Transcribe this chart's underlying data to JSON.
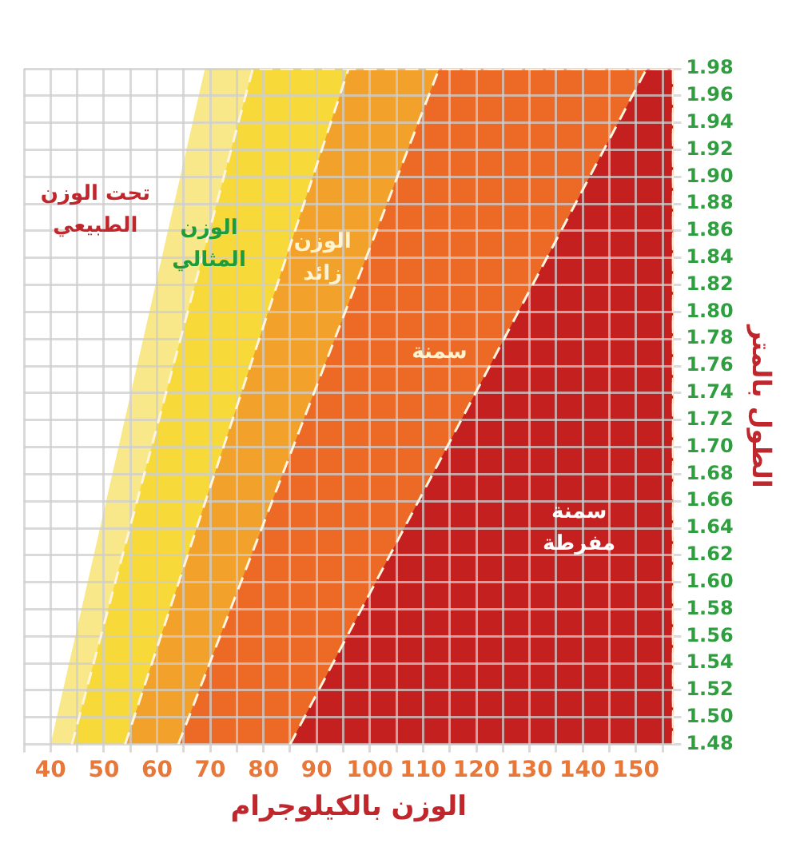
{
  "chart_data": {
    "type": "area",
    "xlabel": "الوزن بالكيلوجرام",
    "ylabel": "الطول بالمتر",
    "series": [
      {
        "color": "#f8e88a",
        "x": [
          40,
          69,
          157,
          157
        ],
        "values": [
          1.48,
          1.98,
          1.98,
          1.48
        ],
        "line_style": "none"
      },
      {
        "color": "#f7d93a",
        "x": [
          44,
          78,
          157,
          157
        ],
        "values": [
          1.48,
          1.98,
          1.98,
          1.48
        ],
        "line_style": "dashed"
      },
      {
        "color": "#f2a12a",
        "x": [
          54,
          96,
          157,
          157
        ],
        "values": [
          1.48,
          1.98,
          1.98,
          1.48
        ],
        "line_style": "dashed"
      },
      {
        "color": "#ec6a25",
        "x": [
          64,
          113,
          157,
          157
        ],
        "values": [
          1.48,
          1.98,
          1.98,
          1.48
        ],
        "line_style": "dashed"
      },
      {
        "color": "#c4201f",
        "x": [
          85,
          152,
          157,
          157
        ],
        "values": [
          1.48,
          1.98,
          1.98,
          1.48
        ],
        "line_style": "dashed"
      }
    ],
    "xlim": [
      35,
      157
    ],
    "xticks": [
      {
        "value": 35,
        "label": null
      },
      40,
      {
        "value": 45,
        "label": null
      },
      50,
      {
        "value": 55,
        "label": null
      },
      60,
      {
        "value": 65,
        "label": null
      },
      70,
      {
        "value": 75,
        "label": null
      },
      80,
      {
        "value": 85,
        "label": null
      },
      90,
      {
        "value": 95,
        "label": null
      },
      100,
      {
        "value": 105,
        "label": null
      },
      110,
      {
        "value": 115,
        "label": null
      },
      120,
      {
        "value": 125,
        "label": null
      },
      130,
      {
        "value": 135,
        "label": null
      },
      140,
      {
        "value": 145,
        "label": null
      },
      150,
      {
        "value": 155,
        "label": null
      }
    ],
    "ylim": [
      1.48,
      1.98
    ],
    "yticks": [
      {
        "value": 1.48,
        "label": "1.48"
      },
      {
        "value": 1.5,
        "label": "1.50"
      },
      {
        "value": 1.52,
        "label": "1.52"
      },
      {
        "value": 1.54,
        "label": "1.54"
      },
      {
        "value": 1.56,
        "label": "1.56"
      },
      {
        "value": 1.58,
        "label": "1.58"
      },
      {
        "value": 1.6,
        "label": "1.60"
      },
      {
        "value": 1.62,
        "label": "1.62"
      },
      {
        "value": 1.64,
        "label": "1.64"
      },
      {
        "value": 1.66,
        "label": "1.66"
      },
      {
        "value": 1.68,
        "label": "1.68"
      },
      {
        "value": 1.7,
        "label": "1.70"
      },
      {
        "value": 1.72,
        "label": "1.72"
      },
      {
        "value": 1.74,
        "label": "1.74"
      },
      {
        "value": 1.76,
        "label": "1.76"
      },
      {
        "value": 1.78,
        "label": "1.78"
      },
      {
        "value": 1.8,
        "label": "1.80"
      },
      {
        "value": 1.82,
        "label": "1.82"
      },
      {
        "value": 1.84,
        "label": "1.84"
      },
      {
        "value": 1.86,
        "label": "1.86"
      },
      {
        "value": 1.88,
        "label": "1.88"
      },
      {
        "value": 1.9,
        "label": "1.90"
      },
      {
        "value": 1.92,
        "label": "1.92"
      },
      {
        "value": 1.94,
        "label": "1.94"
      },
      {
        "value": 1.96,
        "label": "1.96"
      },
      {
        "value": 1.98,
        "label": "1.98"
      }
    ],
    "grid": true,
    "legend": false,
    "annotations": [
      "تحت الوزن\nالطبيعي",
      "الوزن\nالمثالي",
      "الوزن\nزائد",
      "سمنة",
      "سمنة\nمفرطة"
    ]
  }
}
